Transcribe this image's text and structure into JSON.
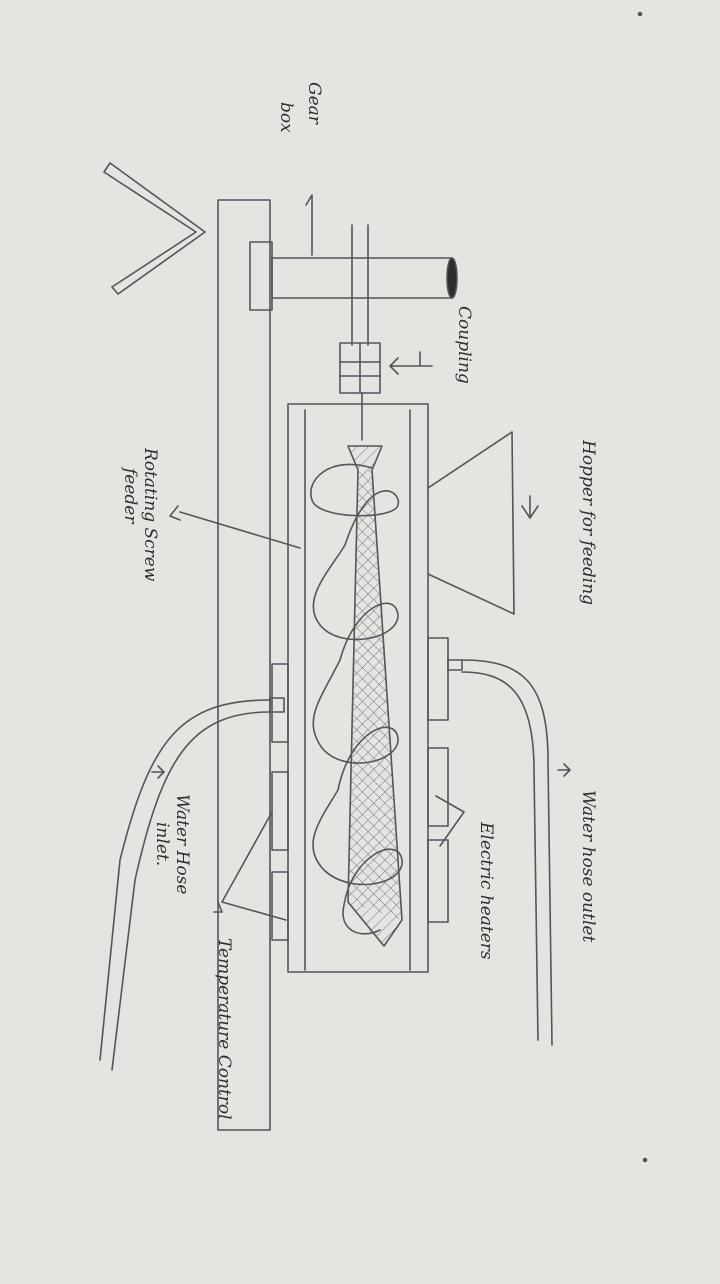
{
  "labels": {
    "gear_box_line1": "Gear",
    "gear_box_line2": "box",
    "coupling": "Coupling",
    "hopper": "Hopper for feeding",
    "rotating_screw_line1": "Rotating Screw",
    "rotating_screw_line2": "feeder",
    "water_hose_outlet": "Water hose outlet",
    "electric_heaters": "Electric heaters",
    "water_hose_inlet_line1": "Water Hose",
    "water_hose_inlet_line2": "inlet.",
    "temperature_control": "Temperature Control"
  },
  "colors": {
    "paper": "#e4e4e1",
    "ink": "#55555a",
    "dark_ink": "#2e2e30"
  }
}
